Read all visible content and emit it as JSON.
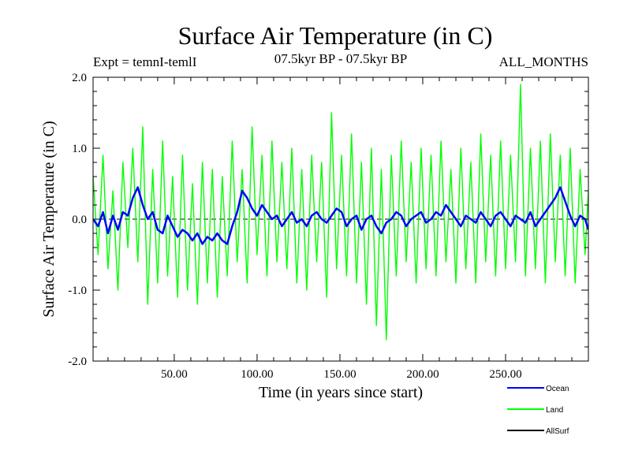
{
  "chart_data": {
    "type": "line",
    "title": "Surface Air Temperature (in C)",
    "subtitle_left": "Expt = temnI-temlI",
    "subtitle_center": "07.5kyr BP - 07.5kyr BP",
    "subtitle_right": "ALL_MONTHS",
    "xlabel": "Time (in years since start)",
    "ylabel": "Surface Air Temperature (in C)",
    "xlim": [
      1,
      300
    ],
    "ylim": [
      -2.0,
      2.0
    ],
    "x_ticks": [
      {
        "value": 50,
        "label": "50.00"
      },
      {
        "value": 100,
        "label": "100.00"
      },
      {
        "value": 150,
        "label": "150.00"
      },
      {
        "value": 200,
        "label": "200.00"
      },
      {
        "value": 250,
        "label": "250.00"
      }
    ],
    "y_ticks": [
      {
        "value": 2.0,
        "label": "2.0"
      },
      {
        "value": 1.0,
        "label": "1.0"
      },
      {
        "value": 0.0,
        "label": "0.0"
      },
      {
        "value": -1.0,
        "label": "-1.0"
      },
      {
        "value": -2.0,
        "label": "-2.0"
      }
    ],
    "zero_line": true,
    "series": [
      {
        "name": "Land",
        "color": "#00ff00",
        "x": [
          1,
          4,
          7,
          10,
          13,
          16,
          19,
          22,
          25,
          28,
          31,
          34,
          37,
          40,
          43,
          46,
          49,
          52,
          55,
          58,
          61,
          64,
          67,
          70,
          73,
          76,
          79,
          82,
          85,
          88,
          91,
          94,
          97,
          100,
          103,
          106,
          109,
          112,
          115,
          118,
          121,
          124,
          127,
          130,
          133,
          136,
          139,
          142,
          145,
          148,
          151,
          154,
          157,
          160,
          163,
          166,
          169,
          172,
          175,
          178,
          181,
          184,
          187,
          190,
          193,
          196,
          199,
          202,
          205,
          208,
          211,
          214,
          217,
          220,
          223,
          226,
          229,
          232,
          235,
          238,
          241,
          244,
          247,
          250,
          253,
          256,
          259,
          262,
          265,
          268,
          271,
          274,
          277,
          280,
          283,
          286,
          289,
          292,
          295,
          298,
          300
        ],
        "values": [
          0.6,
          -0.5,
          0.9,
          -0.7,
          0.4,
          -1.0,
          0.8,
          -0.4,
          1.0,
          -0.6,
          1.3,
          -1.2,
          0.7,
          -0.9,
          1.1,
          -0.8,
          0.6,
          -1.1,
          0.9,
          -1.0,
          0.5,
          -1.2,
          0.8,
          -0.9,
          0.7,
          -1.1,
          0.6,
          -0.8,
          1.1,
          -0.6,
          0.7,
          -0.9,
          1.3,
          -0.5,
          0.9,
          -0.8,
          1.1,
          -0.6,
          0.8,
          -0.7,
          1.0,
          -0.9,
          0.7,
          -1.0,
          0.9,
          -0.6,
          0.8,
          -1.1,
          1.5,
          -0.7,
          0.9,
          -0.8,
          1.2,
          -0.9,
          0.8,
          -1.2,
          1.0,
          -1.5,
          0.7,
          -1.7,
          0.9,
          -0.8,
          1.1,
          -0.6,
          0.8,
          -0.9,
          1.0,
          -0.7,
          0.9,
          -0.8,
          1.1,
          -0.6,
          0.7,
          -0.9,
          1.0,
          -0.7,
          0.8,
          -0.9,
          1.2,
          -0.6,
          0.9,
          -0.8,
          1.1,
          -0.7,
          0.9,
          -0.6,
          1.9,
          -0.8,
          1.0,
          -0.7,
          1.1,
          -0.9,
          1.2,
          -0.6,
          0.9,
          -0.8,
          1.0,
          -0.9,
          0.7,
          -0.5,
          0.4
        ]
      },
      {
        "name": "Ocean",
        "color": "#0000ff",
        "x": [
          1,
          4,
          7,
          10,
          13,
          16,
          19,
          22,
          25,
          28,
          31,
          34,
          37,
          40,
          43,
          46,
          49,
          52,
          55,
          58,
          61,
          64,
          67,
          70,
          73,
          76,
          79,
          82,
          85,
          88,
          91,
          94,
          97,
          100,
          103,
          106,
          109,
          112,
          115,
          118,
          121,
          124,
          127,
          130,
          133,
          136,
          139,
          142,
          145,
          148,
          151,
          154,
          157,
          160,
          163,
          166,
          169,
          172,
          175,
          178,
          181,
          184,
          187,
          190,
          193,
          196,
          199,
          202,
          205,
          208,
          211,
          214,
          217,
          220,
          223,
          226,
          229,
          232,
          235,
          238,
          241,
          244,
          247,
          250,
          253,
          256,
          259,
          262,
          265,
          268,
          271,
          274,
          277,
          280,
          283,
          286,
          289,
          292,
          295,
          298,
          300
        ],
        "values": [
          0.0,
          -0.1,
          0.1,
          -0.2,
          0.05,
          -0.15,
          0.1,
          0.05,
          0.3,
          0.45,
          0.2,
          0.0,
          0.1,
          -0.15,
          -0.2,
          0.05,
          -0.1,
          -0.25,
          -0.15,
          -0.2,
          -0.3,
          -0.2,
          -0.35,
          -0.25,
          -0.3,
          -0.2,
          -0.3,
          -0.35,
          -0.1,
          0.1,
          0.4,
          0.3,
          0.15,
          0.05,
          0.2,
          0.1,
          0.0,
          0.05,
          -0.1,
          0.0,
          0.1,
          -0.05,
          0.0,
          -0.1,
          0.05,
          0.1,
          0.0,
          -0.05,
          0.05,
          0.15,
          0.1,
          -0.1,
          0.0,
          0.05,
          -0.15,
          0.0,
          0.05,
          -0.1,
          -0.2,
          -0.05,
          0.0,
          0.1,
          0.05,
          -0.1,
          0.0,
          0.05,
          0.1,
          -0.05,
          0.0,
          0.1,
          0.05,
          0.2,
          0.1,
          0.0,
          -0.1,
          0.05,
          0.0,
          -0.05,
          0.1,
          0.0,
          -0.1,
          0.05,
          0.1,
          0.0,
          -0.1,
          0.05,
          0.0,
          -0.05,
          0.1,
          -0.1,
          0.0,
          0.1,
          0.2,
          0.3,
          0.45,
          0.25,
          0.05,
          -0.1,
          0.05,
          0.0,
          -0.15
        ]
      },
      {
        "name": "AllSurf",
        "color": "#000000",
        "x": [],
        "values": []
      }
    ],
    "legend": [
      {
        "name": "Ocean",
        "color": "#0000ff"
      },
      {
        "name": "Land",
        "color": "#00ff00"
      },
      {
        "name": "AllSurf",
        "color": "#000000"
      }
    ],
    "legend_placement": "bottom-right"
  }
}
